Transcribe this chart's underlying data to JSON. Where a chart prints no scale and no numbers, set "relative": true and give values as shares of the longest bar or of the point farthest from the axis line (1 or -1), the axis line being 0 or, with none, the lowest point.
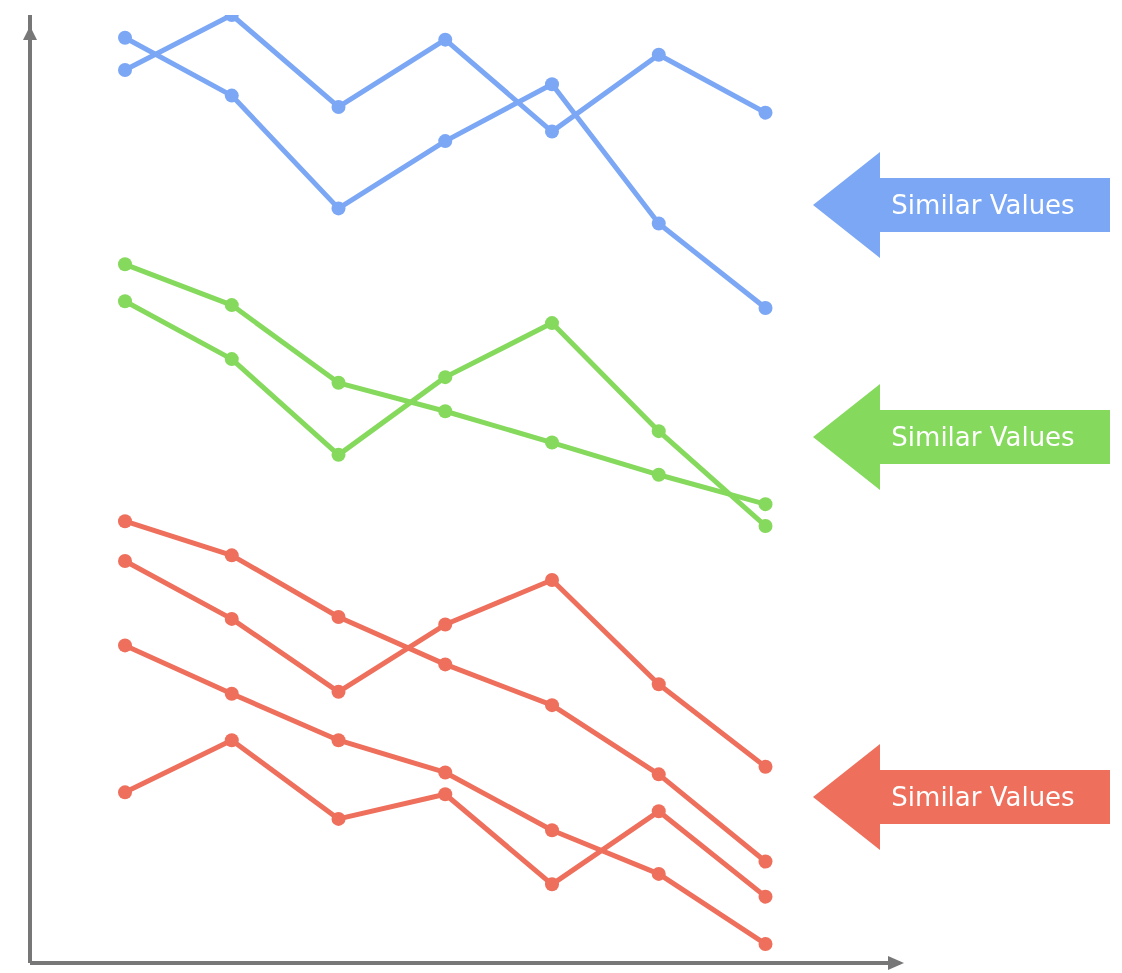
{
  "chart_data": {
    "type": "line",
    "relative": true,
    "categories": [
      null,
      null,
      null,
      null,
      null,
      null,
      null
    ],
    "marker": "circle",
    "line_style": "solid",
    "legend": false,
    "grid": false,
    "series": [
      {
        "color": "#7ba7f5",
        "values": [
          0.942,
          1.0,
          0.903,
          0.974,
          0.877,
          0.958,
          0.897
        ]
      },
      {
        "color": "#7ba7f5",
        "values": [
          0.976,
          0.915,
          0.796,
          0.867,
          0.927,
          0.78,
          0.691
        ]
      },
      {
        "color": "#85d95c",
        "values": [
          0.737,
          0.694,
          0.612,
          0.582,
          0.549,
          0.515,
          0.484
        ]
      },
      {
        "color": "#85d95c",
        "values": [
          0.698,
          0.637,
          0.536,
          0.618,
          0.675,
          0.561,
          0.461
        ]
      },
      {
        "color": "#ee6f5c",
        "values": [
          0.466,
          0.43,
          0.365,
          0.315,
          0.272,
          0.199,
          0.107
        ]
      },
      {
        "color": "#ee6f5c",
        "values": [
          0.424,
          0.363,
          0.286,
          0.357,
          0.404,
          0.294,
          0.207
        ]
      },
      {
        "color": "#ee6f5c",
        "values": [
          0.335,
          0.284,
          0.235,
          0.201,
          0.14,
          0.094,
          0.02
        ]
      },
      {
        "color": "#ee6f5c",
        "values": [
          0.18,
          0.235,
          0.152,
          0.178,
          0.083,
          0.16,
          0.07
        ]
      }
    ],
    "annotations": [
      "Similar Values",
      "Similar Values",
      "Similar Values"
    ]
  }
}
